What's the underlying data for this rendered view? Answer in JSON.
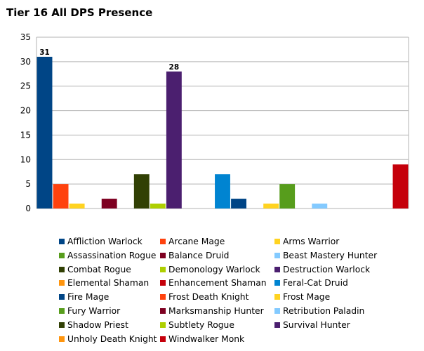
{
  "chart_data": {
    "type": "bar",
    "title": "Tier 16 All DPS Presence",
    "ylim": [
      0,
      35
    ],
    "yticks": [
      0,
      5,
      10,
      15,
      20,
      25,
      30,
      35
    ],
    "grid": true,
    "legend_position": "bottom",
    "series": [
      {
        "name": "Affliction Warlock",
        "value": 31,
        "color": "#004586",
        "label": "31"
      },
      {
        "name": "Arcane Mage",
        "value": 5,
        "color": "#ff420e"
      },
      {
        "name": "Arms Warrior",
        "value": 1,
        "color": "#ffd320"
      },
      {
        "name": "Assassination Rogue",
        "value": 0,
        "color": "#579d1c"
      },
      {
        "name": "Balance Druid",
        "value": 2,
        "color": "#7e0021"
      },
      {
        "name": "Beast Mastery Hunter",
        "value": 0,
        "color": "#83caff"
      },
      {
        "name": "Combat Rogue",
        "value": 7,
        "color": "#314004"
      },
      {
        "name": "Demonology Warlock",
        "value": 1,
        "color": "#aecf00"
      },
      {
        "name": "Destruction Warlock",
        "value": 28,
        "color": "#4b1f6f",
        "label": "28"
      },
      {
        "name": "Elemental Shaman",
        "value": 0,
        "color": "#ff950e"
      },
      {
        "name": "Enhancement Shaman",
        "value": 0,
        "color": "#c5000b"
      },
      {
        "name": "Feral-Cat Druid",
        "value": 7,
        "color": "#0084d1"
      },
      {
        "name": "Fire Mage",
        "value": 2,
        "color": "#004586"
      },
      {
        "name": "Frost Death Knight",
        "value": 0,
        "color": "#ff420e"
      },
      {
        "name": "Frost Mage",
        "value": 1,
        "color": "#ffd320"
      },
      {
        "name": "Fury Warrior",
        "value": 5,
        "color": "#579d1c"
      },
      {
        "name": "Marksmanship Hunter",
        "value": 0,
        "color": "#7e0021"
      },
      {
        "name": "Retribution Paladin",
        "value": 1,
        "color": "#83caff"
      },
      {
        "name": "Shadow Priest",
        "value": 0,
        "color": "#314004"
      },
      {
        "name": "Subtlety Rogue",
        "value": 0,
        "color": "#aecf00"
      },
      {
        "name": "Survival Hunter",
        "value": 0,
        "color": "#4b1f6f"
      },
      {
        "name": "Unholy Death Knight",
        "value": 0,
        "color": "#ff950e"
      },
      {
        "name": "Windwalker Monk",
        "value": 9,
        "color": "#c5000b"
      }
    ]
  }
}
